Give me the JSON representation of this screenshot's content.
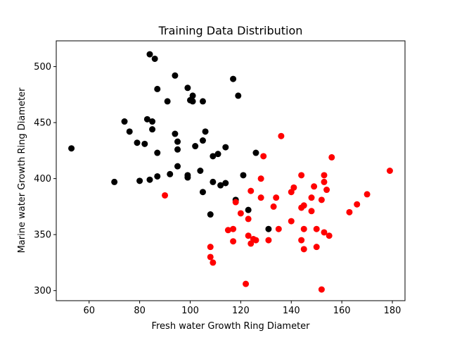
{
  "chart_data": {
    "type": "scatter",
    "title": "Training Data Distribution",
    "xlabel": "Fresh water Growth Ring Diameter",
    "ylabel": "Marine water Growth Ring Diameter",
    "xlim": [
      47,
      185
    ],
    "ylim": [
      291,
      523
    ],
    "xticks": [
      60,
      80,
      100,
      120,
      140,
      160,
      180
    ],
    "yticks": [
      300,
      350,
      400,
      450,
      500
    ],
    "grid": false,
    "series": [
      {
        "color": "#000000",
        "points": [
          [
            53,
            427
          ],
          [
            70,
            397
          ],
          [
            74,
            451
          ],
          [
            76,
            442
          ],
          [
            79,
            432
          ],
          [
            80,
            398
          ],
          [
            82,
            431
          ],
          [
            83,
            453
          ],
          [
            84,
            399
          ],
          [
            84,
            511
          ],
          [
            85,
            451
          ],
          [
            85,
            444
          ],
          [
            86,
            507
          ],
          [
            87,
            480
          ],
          [
            87,
            423
          ],
          [
            87,
            402
          ],
          [
            91,
            469
          ],
          [
            92,
            404
          ],
          [
            94,
            492
          ],
          [
            94,
            440
          ],
          [
            95,
            433
          ],
          [
            95,
            426
          ],
          [
            95,
            411
          ],
          [
            99,
            481
          ],
          [
            99,
            403
          ],
          [
            99,
            401
          ],
          [
            100,
            470
          ],
          [
            101,
            474
          ],
          [
            101,
            469
          ],
          [
            102,
            429
          ],
          [
            104,
            407
          ],
          [
            105,
            469
          ],
          [
            105,
            434
          ],
          [
            105,
            388
          ],
          [
            106,
            442
          ],
          [
            108,
            368
          ],
          [
            109,
            420
          ],
          [
            109,
            397
          ],
          [
            111,
            422
          ],
          [
            112,
            394
          ],
          [
            114,
            428
          ],
          [
            114,
            396
          ],
          [
            117,
            489
          ],
          [
            118,
            381
          ],
          [
            119,
            474
          ],
          [
            121,
            403
          ],
          [
            123,
            372
          ],
          [
            126,
            423
          ],
          [
            131,
            355
          ]
        ]
      },
      {
        "color": "#ff0000",
        "points": [
          [
            90,
            385
          ],
          [
            108,
            339
          ],
          [
            108,
            330
          ],
          [
            109,
            325
          ],
          [
            115,
            354
          ],
          [
            117,
            355
          ],
          [
            117,
            344
          ],
          [
            118,
            379
          ],
          [
            120,
            369
          ],
          [
            122,
            306
          ],
          [
            123,
            364
          ],
          [
            123,
            349
          ],
          [
            124,
            389
          ],
          [
            124,
            342
          ],
          [
            125,
            346
          ],
          [
            126,
            345
          ],
          [
            128,
            400
          ],
          [
            128,
            383
          ],
          [
            129,
            420
          ],
          [
            131,
            345
          ],
          [
            133,
            375
          ],
          [
            134,
            383
          ],
          [
            135,
            355
          ],
          [
            136,
            438
          ],
          [
            140,
            388
          ],
          [
            140,
            362
          ],
          [
            141,
            392
          ],
          [
            144,
            403
          ],
          [
            144,
            374
          ],
          [
            144,
            345
          ],
          [
            145,
            376
          ],
          [
            145,
            355
          ],
          [
            145,
            337
          ],
          [
            148,
            383
          ],
          [
            148,
            371
          ],
          [
            149,
            393
          ],
          [
            150,
            355
          ],
          [
            150,
            339
          ],
          [
            152,
            381
          ],
          [
            152,
            301
          ],
          [
            153,
            403
          ],
          [
            153,
            397
          ],
          [
            153,
            352
          ],
          [
            154,
            390
          ],
          [
            155,
            349
          ],
          [
            156,
            419
          ],
          [
            163,
            370
          ],
          [
            166,
            377
          ],
          [
            170,
            386
          ],
          [
            179,
            407
          ]
        ]
      }
    ]
  }
}
